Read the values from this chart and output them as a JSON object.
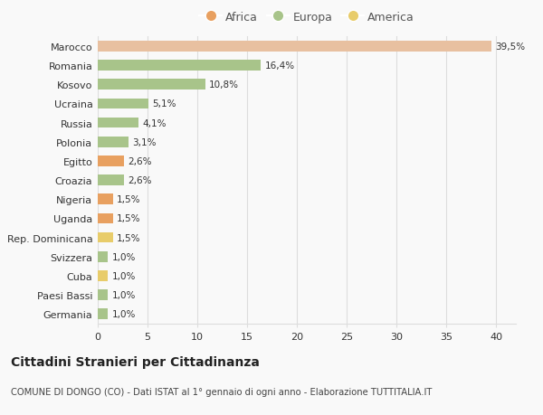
{
  "categories": [
    "Germania",
    "Paesi Bassi",
    "Cuba",
    "Svizzera",
    "Rep. Dominicana",
    "Uganda",
    "Nigeria",
    "Croazia",
    "Egitto",
    "Polonia",
    "Russia",
    "Ucraina",
    "Kosovo",
    "Romania",
    "Marocco"
  ],
  "values": [
    1.0,
    1.0,
    1.0,
    1.0,
    1.5,
    1.5,
    1.5,
    2.6,
    2.6,
    3.1,
    4.1,
    5.1,
    10.8,
    16.4,
    39.5
  ],
  "labels": [
    "1,0%",
    "1,0%",
    "1,0%",
    "1,0%",
    "1,5%",
    "1,5%",
    "1,5%",
    "2,6%",
    "2,6%",
    "3,1%",
    "4,1%",
    "5,1%",
    "10,8%",
    "16,4%",
    "39,5%"
  ],
  "continent": [
    "Europa",
    "Europa",
    "America",
    "Europa",
    "America",
    "Africa",
    "Africa",
    "Europa",
    "Africa",
    "Europa",
    "Europa",
    "Europa",
    "Europa",
    "Europa",
    "Africa"
  ],
  "xlim": [
    0,
    42
  ],
  "xticks": [
    0,
    5,
    10,
    15,
    20,
    25,
    30,
    35,
    40
  ],
  "title": "Cittadini Stranieri per Cittadinanza",
  "subtitle": "COMUNE DI DONGO (CO) - Dati ISTAT al 1° gennaio di ogni anno - Elaborazione TUTTITALIA.IT",
  "bg_color": "#f9f9f9",
  "grid_color": "#dddddd",
  "bar_height": 0.55,
  "africa_color": "#e8a060",
  "europa_color": "#a8c48a",
  "america_color": "#e8cc6a",
  "marocco_color": "#e8c0a0"
}
